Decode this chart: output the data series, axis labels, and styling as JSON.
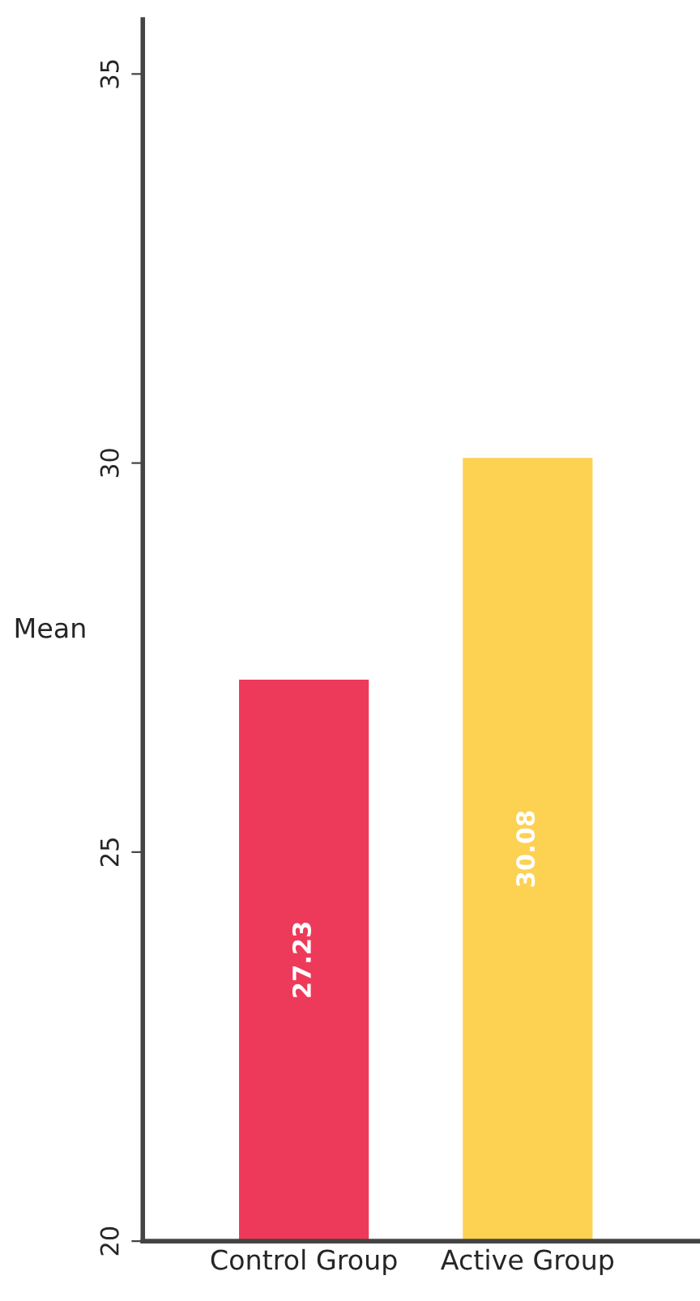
{
  "chart_data": {
    "type": "bar",
    "ylabel": "Mean",
    "categories": [
      "Control Group",
      "Active Group"
    ],
    "values": [
      27.23,
      30.08
    ],
    "colors": [
      "#ee3a5a",
      "#fdd152"
    ],
    "ylim": [
      20,
      35.7
    ],
    "yticks": [
      20,
      25,
      30,
      35
    ],
    "data_labels": true,
    "grid": false,
    "legend": false
  }
}
